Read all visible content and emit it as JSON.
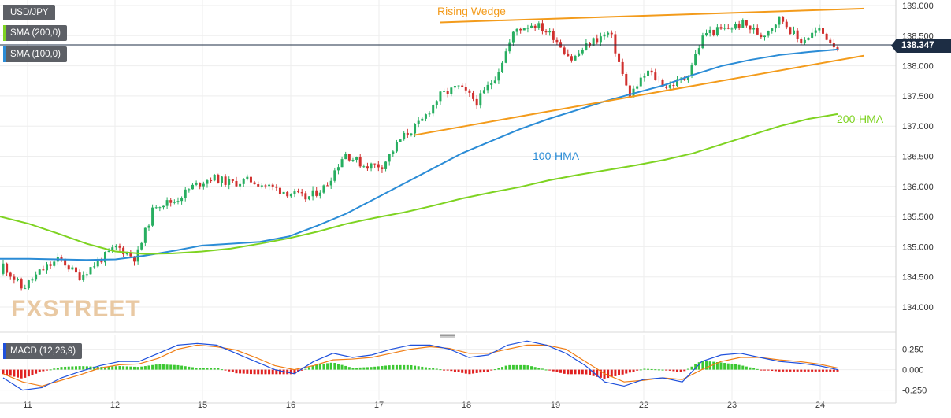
{
  "chart_data": [
    {
      "type": "candlestick",
      "symbol": "USD/JPY",
      "legend": [
        {
          "label": "SMA (200,0)",
          "color": "#7ed321"
        },
        {
          "label": "SMA (100,0)",
          "color": "#2b8cd6"
        }
      ],
      "y_ticks": [
        "139.000",
        "138.500",
        "138.000",
        "137.500",
        "137.000",
        "136.500",
        "136.000",
        "135.500",
        "135.000",
        "134.500",
        "134.000"
      ],
      "ylim": [
        133.6,
        139.1
      ],
      "x_ticks": [
        "11",
        "12",
        "15",
        "16",
        "17",
        "18",
        "19",
        "22",
        "23",
        "24"
      ],
      "last_price": "138.347",
      "candles_anchor_close": [
        134.7,
        134.3,
        134.6,
        134.8,
        134.5,
        134.75,
        135.0,
        134.8,
        135.7,
        135.75,
        136.0,
        136.15,
        136.05,
        136.1,
        136.0,
        135.9,
        135.8,
        136.0,
        136.55,
        136.35,
        136.35,
        136.8,
        137.05,
        137.5,
        137.65,
        137.4,
        137.85,
        138.6,
        138.7,
        138.5,
        138.1,
        138.4,
        138.55,
        137.5,
        137.9,
        137.65,
        137.8,
        138.55,
        138.6,
        138.7,
        138.5,
        138.8,
        138.4,
        138.6,
        138.3
      ],
      "series": [
        {
          "name": "100-HMA",
          "color": "#2b8cd6",
          "values": [
            134.8,
            134.8,
            134.79,
            134.78,
            134.79,
            134.85,
            134.93,
            135.02,
            135.05,
            135.08,
            135.17,
            135.35,
            135.55,
            135.8,
            136.05,
            136.3,
            136.55,
            136.75,
            136.95,
            137.12,
            137.27,
            137.42,
            137.55,
            137.68,
            137.85,
            138.0,
            138.1,
            138.18,
            138.23,
            138.27
          ]
        },
        {
          "name": "200-HMA",
          "color": "#7ed321",
          "values": [
            135.5,
            135.38,
            135.22,
            135.05,
            134.92,
            134.88,
            134.89,
            134.92,
            134.97,
            135.05,
            135.14,
            135.25,
            135.38,
            135.48,
            135.57,
            135.68,
            135.8,
            135.9,
            135.99,
            136.1,
            136.19,
            136.27,
            136.35,
            136.44,
            136.55,
            136.7,
            136.85,
            137.0,
            137.12,
            137.2
          ]
        }
      ],
      "annotations": [
        {
          "text": "Rising Wedge",
          "color": "#f39b1b"
        },
        {
          "text": "100-HMA",
          "color": "#2b8cd6"
        },
        {
          "text": "200-HMA",
          "color": "#7ed321"
        }
      ],
      "trendlines": [
        {
          "name": "wedge-upper",
          "color": "#f39b1b",
          "x_start": "17.7",
          "y_start": 138.72,
          "x_end": "24.5",
          "y_end": 138.95
        },
        {
          "name": "wedge-lower",
          "color": "#f39b1b",
          "x_start": "17.4",
          "y_start": 136.85,
          "x_end": "24.5",
          "y_end": 138.17
        }
      ],
      "watermark": "FXSTREET"
    },
    {
      "type": "histogram+line",
      "title": "MACD (12,26,9)",
      "y_ticks": [
        "0.250",
        "0.000",
        "-0.250"
      ],
      "ylim": [
        -0.35,
        0.4
      ],
      "colors": {
        "positive": "#3cc832",
        "negative": "#e02020",
        "macd": "#1e50dc",
        "signal": "#f07d14"
      },
      "macd": [
        -0.1,
        -0.25,
        -0.22,
        -0.1,
        -0.02,
        0.05,
        0.1,
        0.1,
        0.2,
        0.3,
        0.32,
        0.3,
        0.2,
        0.1,
        0.0,
        -0.05,
        0.1,
        0.2,
        0.15,
        0.18,
        0.25,
        0.3,
        0.3,
        0.25,
        0.15,
        0.18,
        0.3,
        0.35,
        0.3,
        0.2,
        0.05,
        -0.15,
        -0.2,
        -0.12,
        -0.1,
        -0.15,
        0.1,
        0.18,
        0.2,
        0.15,
        0.1,
        0.08,
        0.05,
        0.0
      ],
      "signal": [
        -0.05,
        -0.15,
        -0.2,
        -0.13,
        -0.06,
        0.02,
        0.06,
        0.07,
        0.14,
        0.25,
        0.3,
        0.28,
        0.24,
        0.15,
        0.05,
        0.0,
        0.05,
        0.12,
        0.13,
        0.15,
        0.2,
        0.25,
        0.28,
        0.26,
        0.2,
        0.2,
        0.25,
        0.3,
        0.3,
        0.25,
        0.1,
        -0.05,
        -0.15,
        -0.13,
        -0.1,
        -0.12,
        0.0,
        0.1,
        0.15,
        0.15,
        0.12,
        0.1,
        0.07,
        0.02
      ]
    }
  ],
  "ui": {
    "symbol_label": "USD/JPY",
    "sma200_label": "SMA (200,0)",
    "sma100_label": "SMA (100,0)",
    "macd_label": "MACD (12,26,9)",
    "price_tag": "138.347"
  }
}
